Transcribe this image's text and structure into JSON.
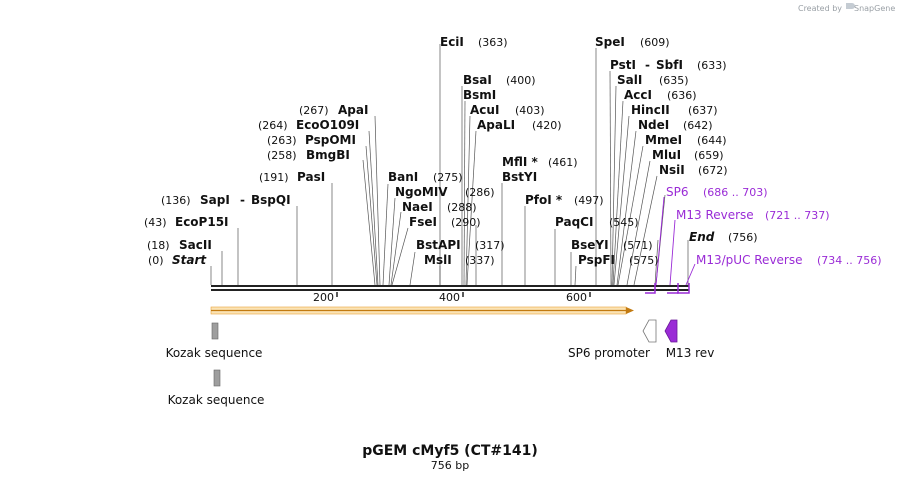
{
  "title": "pGEM cMyf5 (CT#141)",
  "length_label": "756 bp",
  "credit": {
    "prefix": "Created by",
    "brand": "SnapGene"
  },
  "colors": {
    "orf": "#f5a623",
    "primer": "#9a2bd6",
    "feature_gray": "#9e9e9e",
    "backbone": "#222222"
  },
  "start_label": {
    "pos": "(0)",
    "name": "Start"
  },
  "end_label": {
    "name": "End",
    "pos": "(756)"
  },
  "enzymes_left": [
    {
      "pos": "(18)",
      "name": "SacII"
    },
    {
      "pos": "(43)",
      "name": "EcoP15I"
    },
    {
      "pos": "(136)",
      "name": "SapI",
      "sep": "-",
      "name2": "BspQI"
    },
    {
      "pos": "(191)",
      "name": "PasI"
    },
    {
      "pos": "(258)",
      "name": "BmgBI"
    },
    {
      "pos": "(263)",
      "name": "PspOMI"
    },
    {
      "pos": "(264)",
      "name": "EcoO109I"
    },
    {
      "pos": "(267)",
      "name": "ApaI"
    }
  ],
  "enzymes_middle": [
    {
      "name": "BanI",
      "pos": "(275)"
    },
    {
      "name": "NgoMIV",
      "pos": "(286)"
    },
    {
      "name": "NaeI",
      "pos": "(288)"
    },
    {
      "name": "FseI",
      "pos": "(290)"
    },
    {
      "name": "BstAPI",
      "pos": "(317)"
    },
    {
      "name": "MslI",
      "pos": "(337)"
    },
    {
      "name": "EciI",
      "pos": "(363)"
    },
    {
      "name": "BsaI",
      "pos": "(400)"
    },
    {
      "name": "BsmI",
      "pos": ""
    },
    {
      "name": "AcuI",
      "pos": "(403)"
    },
    {
      "name": "ApaLI",
      "pos": "(420)"
    },
    {
      "name": "MflI *",
      "pos": "(461)"
    },
    {
      "name": "BstYI",
      "pos": ""
    },
    {
      "name": "PfoI *",
      "pos": "(497)"
    },
    {
      "name": "PaqCI",
      "pos": "(545)"
    },
    {
      "name": "BseYI",
      "pos": "(571)"
    },
    {
      "name": "PspFI",
      "pos": "(575)"
    },
    {
      "name": "SpeI",
      "pos": "(609)"
    },
    {
      "name": "PstI",
      "sep": "-",
      "name2": "SbfI",
      "pos": "(633)"
    },
    {
      "name": "SalI",
      "pos": "(635)"
    },
    {
      "name": "AccI",
      "pos": "(636)"
    },
    {
      "name": "HincII",
      "pos": "(637)"
    },
    {
      "name": "NdeI",
      "pos": "(642)"
    },
    {
      "name": "MmeI",
      "pos": "(644)"
    },
    {
      "name": "MluI",
      "pos": "(659)"
    },
    {
      "name": "NsiI",
      "pos": "(672)"
    }
  ],
  "primers": [
    {
      "name": "SP6",
      "range": "(686 .. 703)"
    },
    {
      "name": "M13 Reverse",
      "range": "(721 .. 737)"
    },
    {
      "name": "M13/pUC Reverse",
      "range": "(734 .. 756)"
    }
  ],
  "ruler_ticks": [
    "200",
    "400",
    "600"
  ],
  "features": [
    {
      "name": "Kozak sequence"
    },
    {
      "name": "Kozak sequence"
    },
    {
      "name": "SP6 promoter"
    },
    {
      "name": "M13 rev"
    }
  ]
}
